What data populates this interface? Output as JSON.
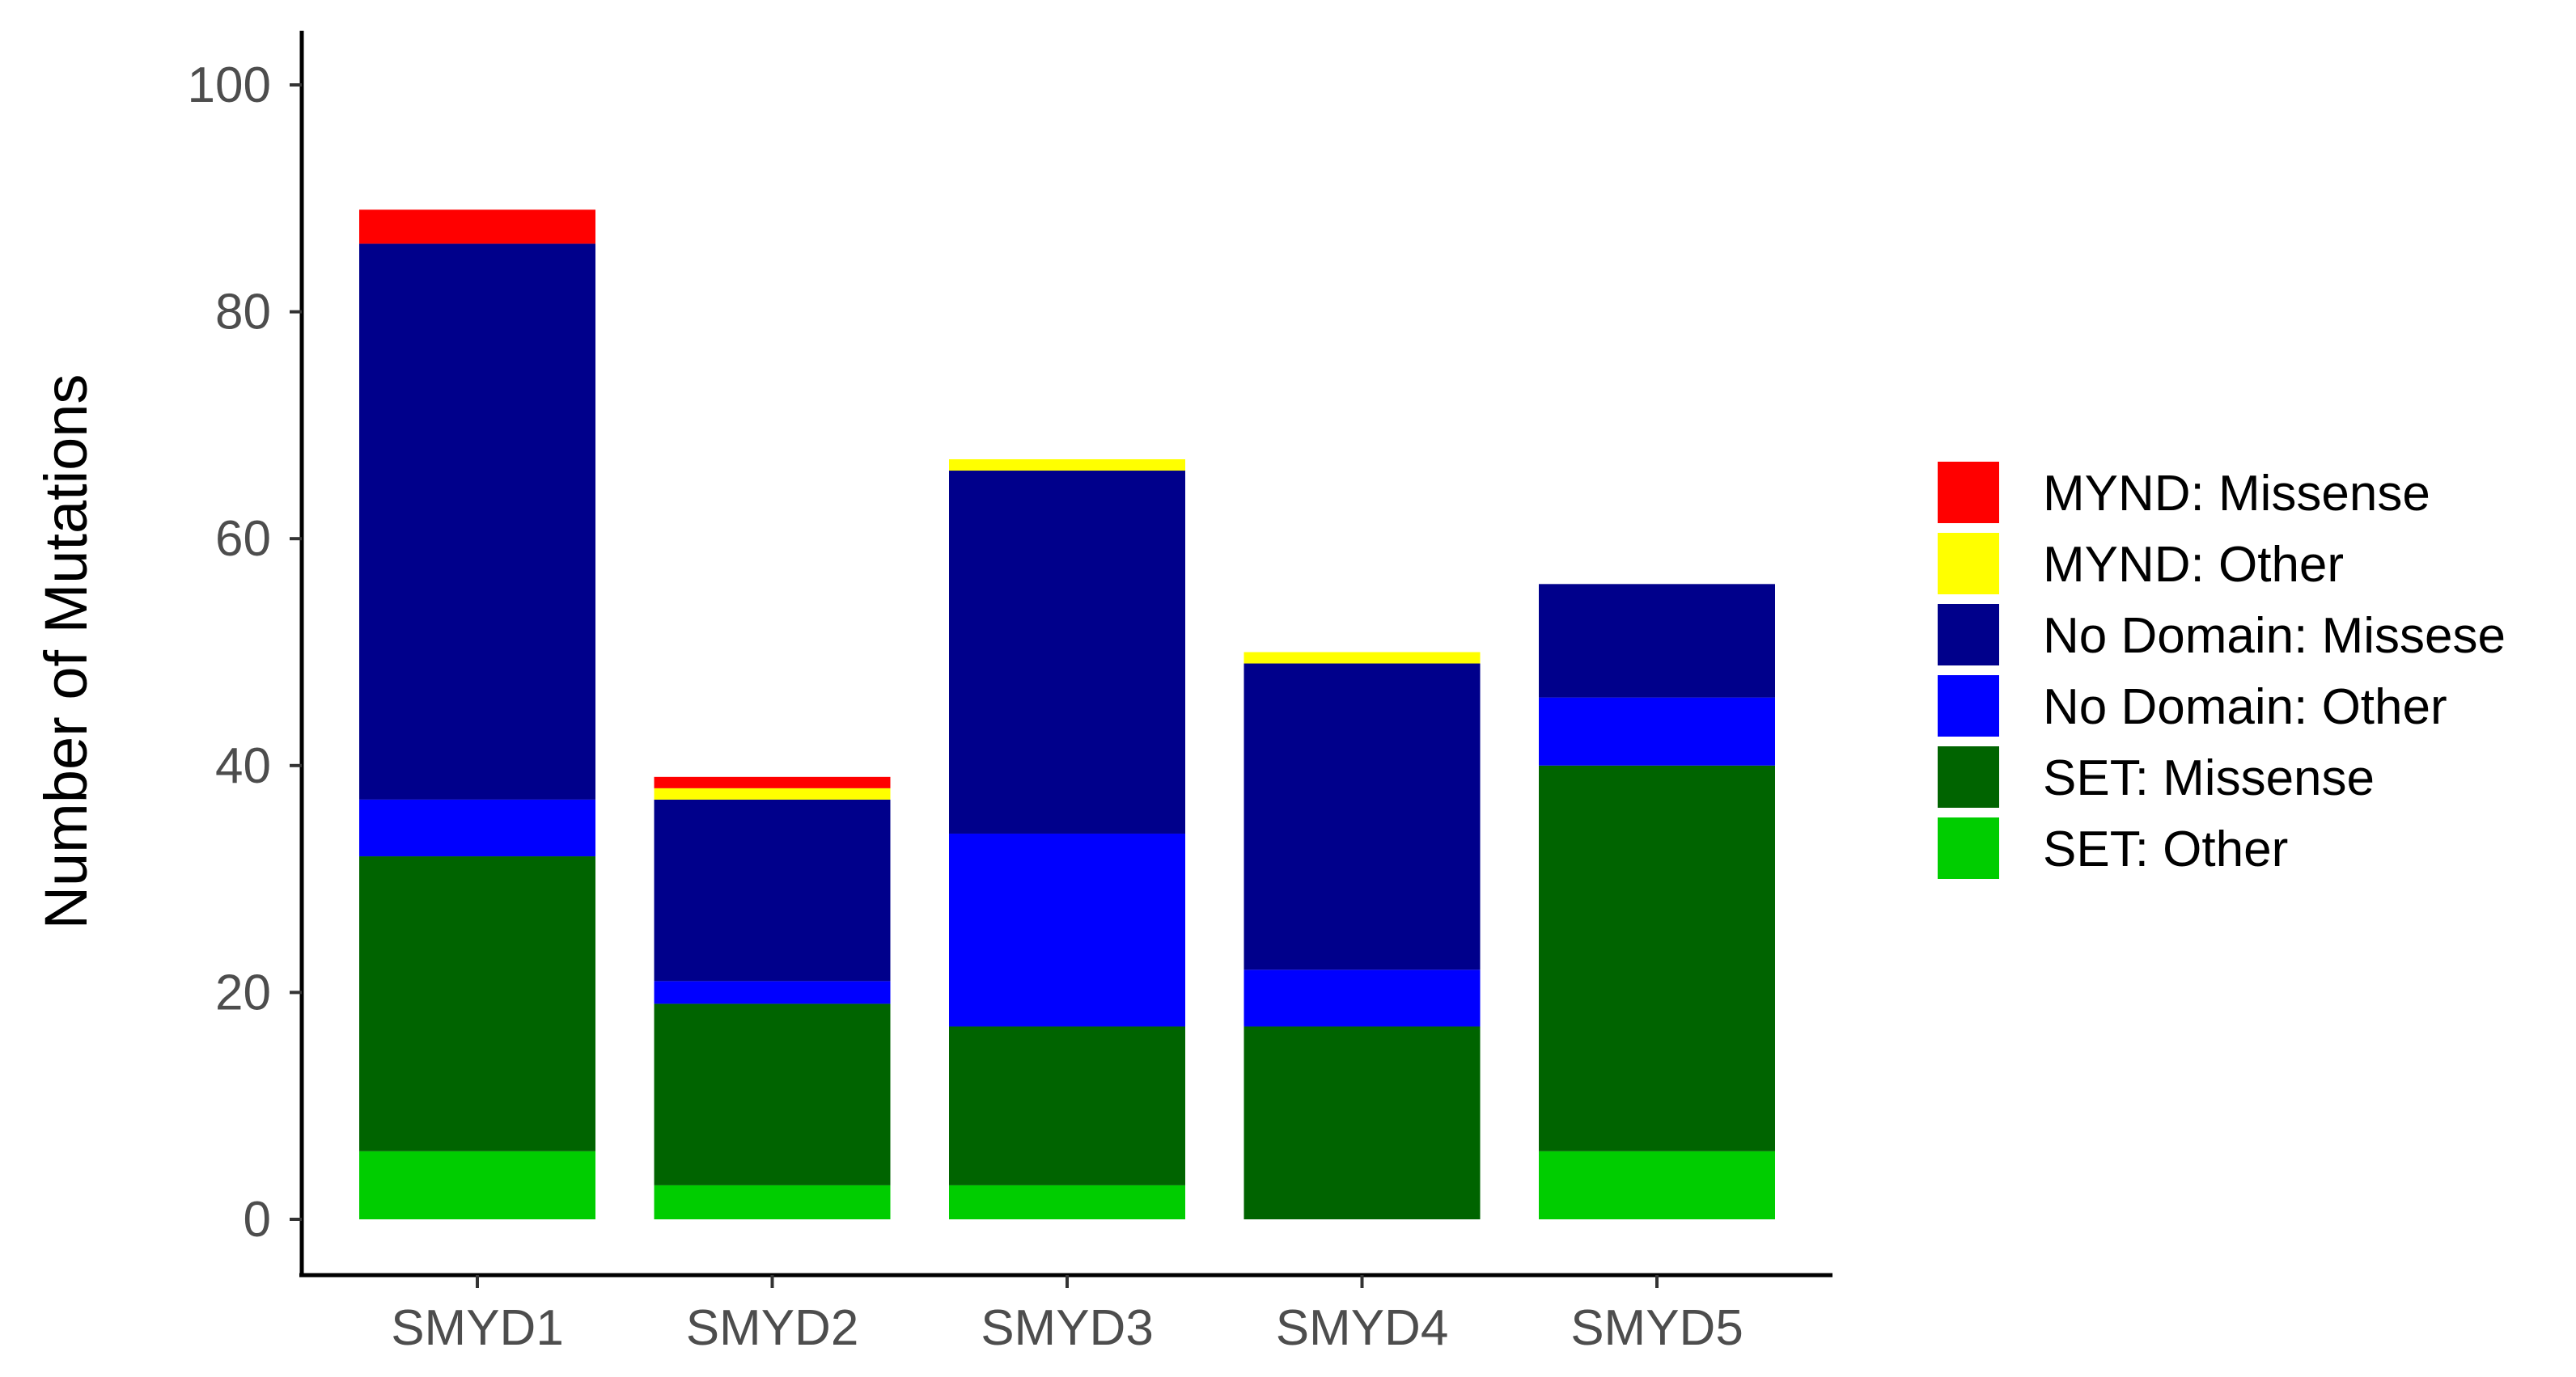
{
  "chart_data": {
    "type": "bar",
    "stacked": true,
    "categories": [
      "SMYD1",
      "SMYD2",
      "SMYD3",
      "SMYD4",
      "SMYD5"
    ],
    "series": [
      {
        "name": "SET: Other",
        "color": "#00CD00",
        "values": [
          6,
          3,
          3,
          0,
          6
        ]
      },
      {
        "name": "SET: Missense",
        "color": "#006400",
        "values": [
          26,
          16,
          14,
          17,
          34
        ]
      },
      {
        "name": "No Domain: Other",
        "color": "#0000FF",
        "values": [
          5,
          2,
          17,
          5,
          6
        ]
      },
      {
        "name": "No Domain: Missese",
        "color": "#00008B",
        "values": [
          49,
          16,
          32,
          27,
          10
        ]
      },
      {
        "name": "MYND: Other",
        "color": "#FFFF00",
        "values": [
          0,
          1,
          1,
          1,
          0
        ]
      },
      {
        "name": "MYND: Missense",
        "color": "#FF0000",
        "values": [
          3,
          1,
          0,
          0,
          0
        ]
      }
    ],
    "legend_order": [
      "MYND: Missense",
      "MYND: Other",
      "No Domain: Missese",
      "No Domain: Other",
      "SET: Missense",
      "SET: Other"
    ],
    "title": "",
    "xlabel": "",
    "ylabel": "Number of Mutations",
    "ylim": [
      0,
      100
    ],
    "yticks": [
      0,
      20,
      40,
      60,
      80,
      100
    ],
    "grid": false,
    "legend_position": "right"
  }
}
